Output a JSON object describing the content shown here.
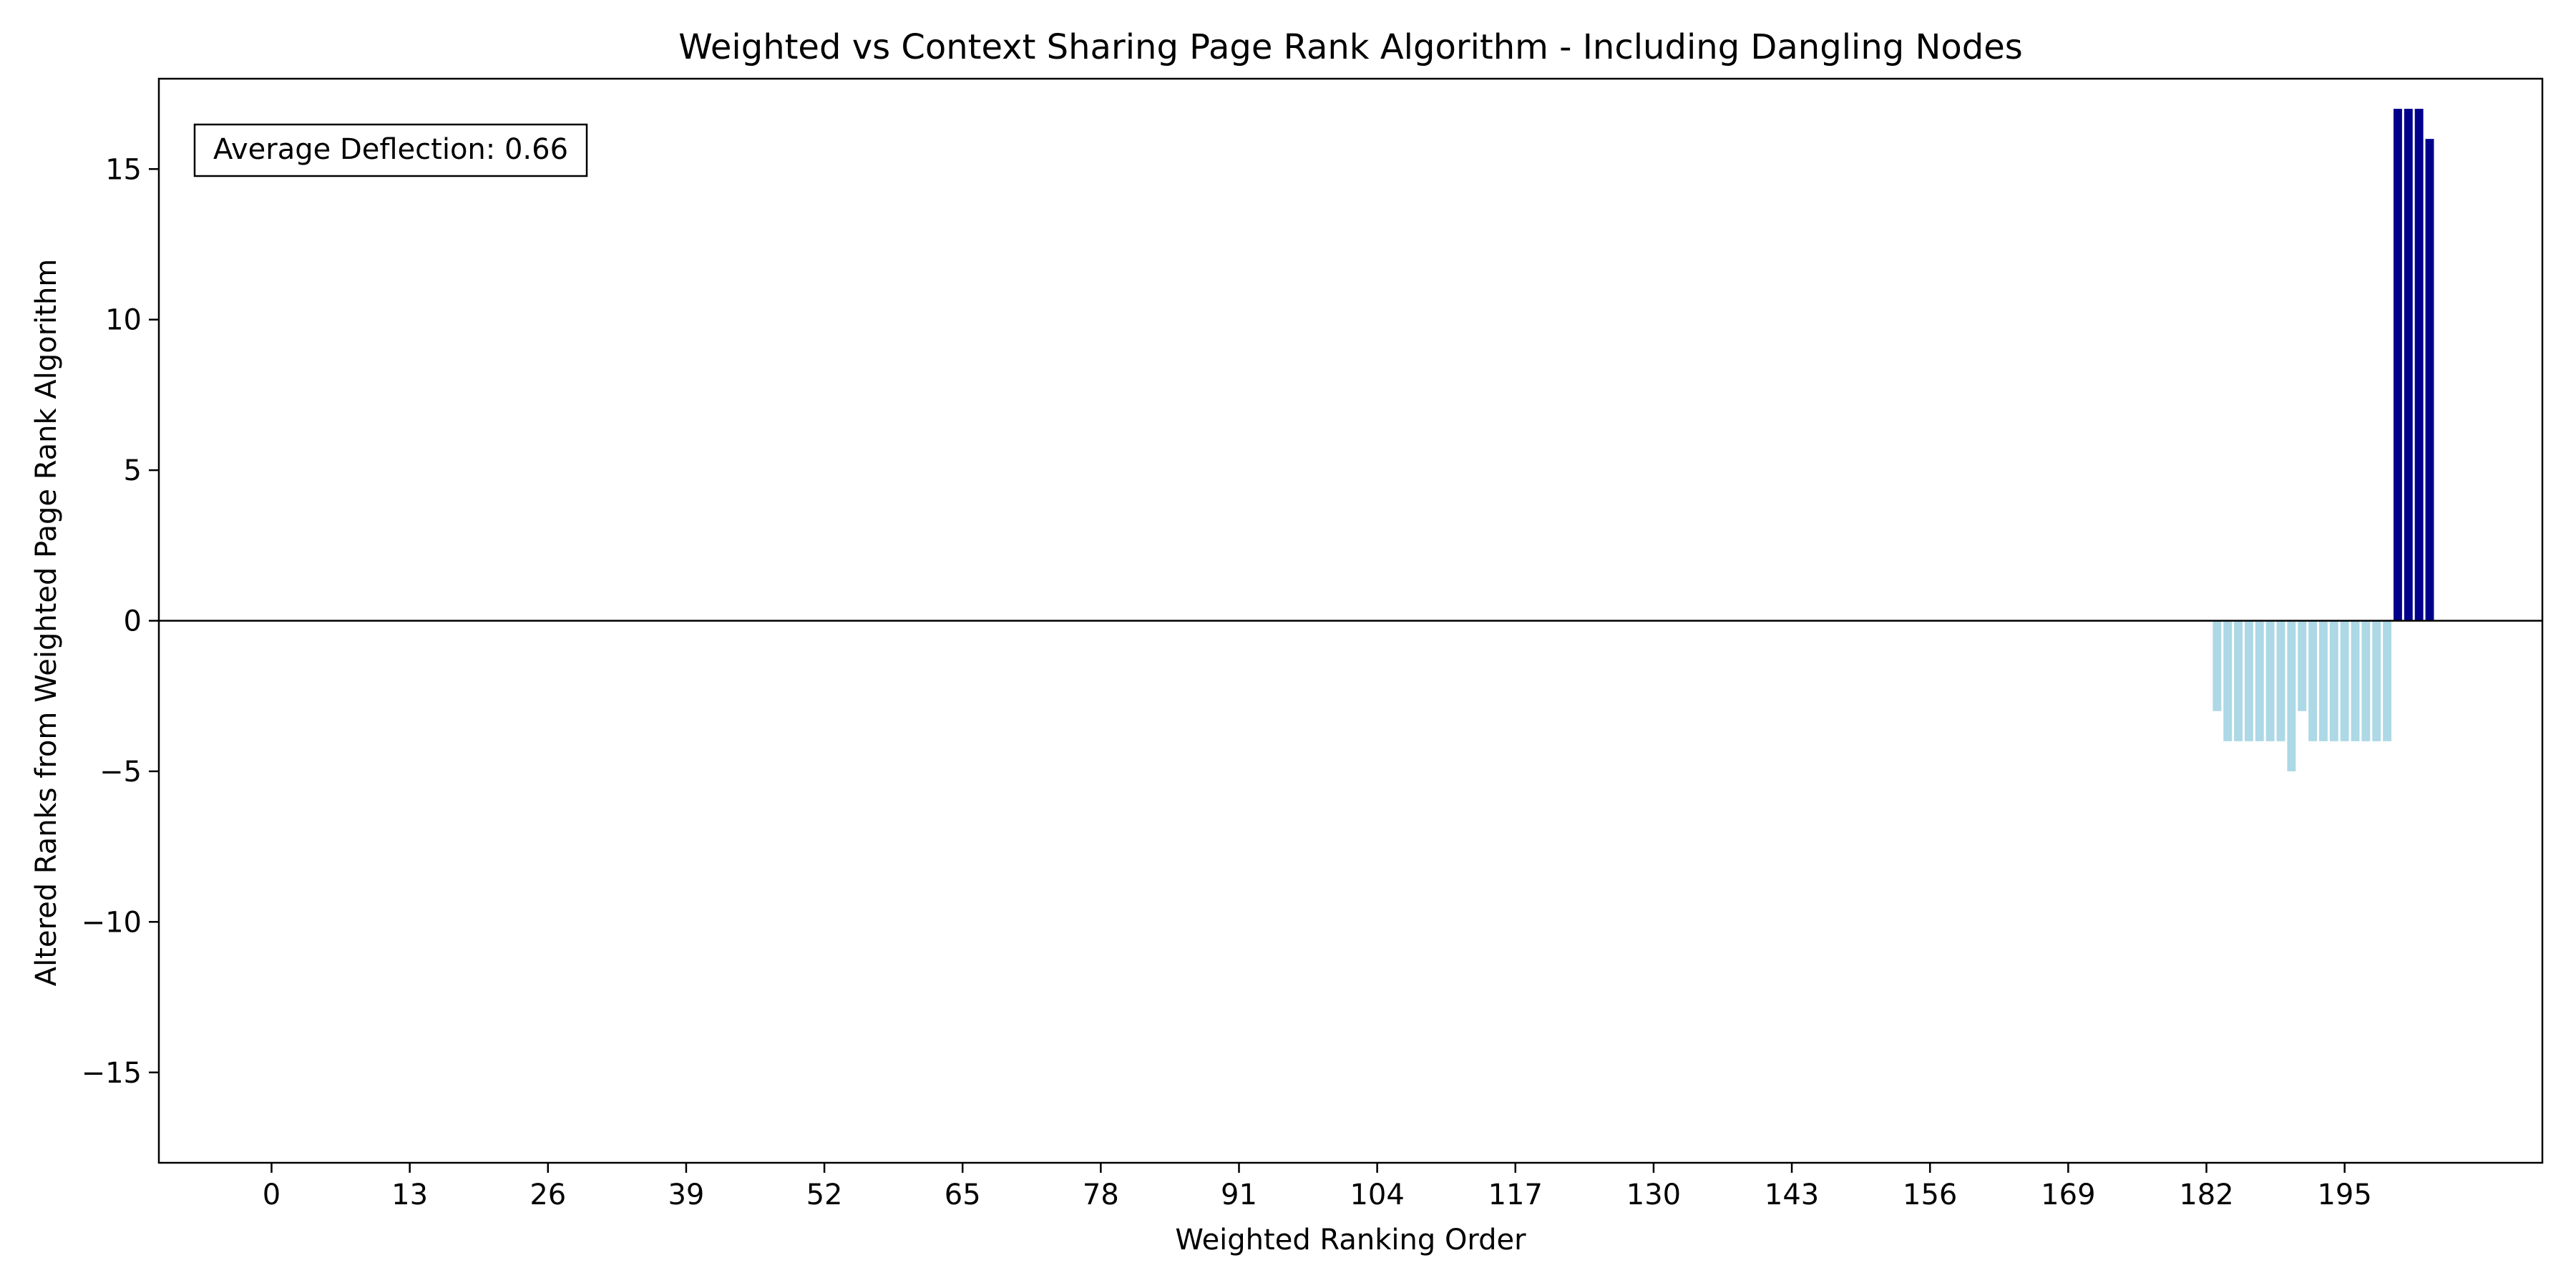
{
  "chart_data": {
    "type": "bar",
    "title": "Weighted vs Context Sharing Page Rank Algorithm - Including Dangling Nodes",
    "xlabel": "Weighted Ranking Order",
    "ylabel": "Altered Ranks from Weighted Page Rank Algorithm",
    "xlim": [
      -10.6,
      213.6
    ],
    "ylim": [
      -18,
      18
    ],
    "xticks": [
      0,
      13,
      26,
      39,
      52,
      65,
      78,
      91,
      104,
      117,
      130,
      143,
      156,
      169,
      182,
      195
    ],
    "yticks": [
      -15,
      -10,
      -5,
      0,
      5,
      10,
      15
    ],
    "ytick_labels": [
      "−15",
      "−10",
      "−5",
      "0",
      "5",
      "10",
      "15"
    ],
    "bar_width": 0.8,
    "colors": {
      "positive": "#00008b",
      "negative": "#add8e6",
      "zero_line": "#000000"
    },
    "annotation": "Average Deflection: 0.66",
    "bars": [
      {
        "x": 183,
        "value": -3
      },
      {
        "x": 184,
        "value": -4
      },
      {
        "x": 185,
        "value": -4
      },
      {
        "x": 186,
        "value": -4
      },
      {
        "x": 187,
        "value": -4
      },
      {
        "x": 188,
        "value": -4
      },
      {
        "x": 189,
        "value": -4
      },
      {
        "x": 190,
        "value": -5
      },
      {
        "x": 191,
        "value": -3
      },
      {
        "x": 192,
        "value": -4
      },
      {
        "x": 193,
        "value": -4
      },
      {
        "x": 194,
        "value": -4
      },
      {
        "x": 195,
        "value": -4
      },
      {
        "x": 196,
        "value": -4
      },
      {
        "x": 197,
        "value": -4
      },
      {
        "x": 198,
        "value": -4
      },
      {
        "x": 199,
        "value": -4
      },
      {
        "x": 200,
        "value": 17
      },
      {
        "x": 201,
        "value": 17
      },
      {
        "x": 202,
        "value": 17
      },
      {
        "x": 203,
        "value": 16
      }
    ]
  }
}
